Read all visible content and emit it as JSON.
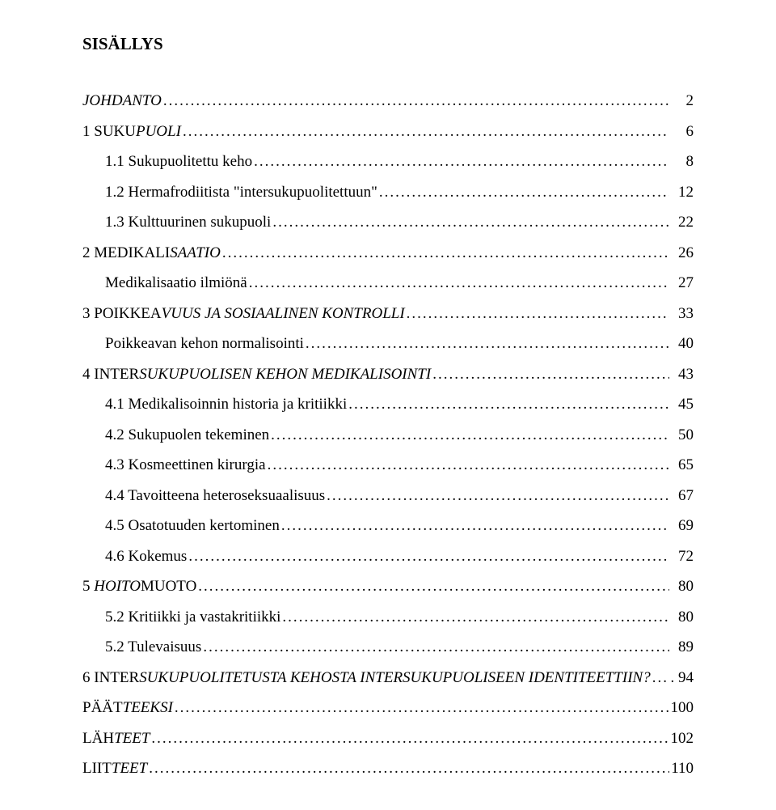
{
  "heading": "SISÄLLYS",
  "toc": [
    {
      "label": "JOHDANTO",
      "italicPart": "JOHDANTO",
      "plainPart": "",
      "page": "2",
      "indent": 0
    },
    {
      "label": "1 SUKUPUOLI",
      "italicPart": "PUOLI",
      "plainPart": "1 SUKU",
      "page": "6",
      "indent": 0
    },
    {
      "label": "1.1 Sukupuolitettu keho",
      "italicPart": "",
      "plainPart": "1.1 Sukupuolitettu keho",
      "page": "8",
      "indent": 1
    },
    {
      "label": "1.2 Hermafrodiitista \"intersukupuolitettuun\"",
      "italicPart": "",
      "plainPart": "1.2 Hermafrodiitista \"intersukupuolitettuun\"",
      "page": "12",
      "indent": 1
    },
    {
      "label": "1.3 Kulttuurinen sukupuoli",
      "italicPart": "",
      "plainPart": "1.3 Kulttuurinen sukupuoli",
      "page": "22",
      "indent": 1
    },
    {
      "label": "2 MEDIKALISAATIO",
      "italicPart": "SAATIO",
      "plainPart": "2 MEDIKALI",
      "page": "26",
      "indent": 0
    },
    {
      "label": "Medikalisaatio ilmiönä",
      "italicPart": "",
      "plainPart": "Medikalisaatio ilmiönä",
      "page": "27",
      "indent": 1
    },
    {
      "label": "3 POIKKEAVUUS JA SOSIAALINEN KONTROLLI",
      "italicPart": "VUUS JA SOSIAALINEN KONTROLLI",
      "plainPart": "3 POIKKEA",
      "page": "33",
      "indent": 0
    },
    {
      "label": "Poikkeavan kehon normalisointi",
      "italicPart": "",
      "plainPart": "Poikkeavan kehon normalisointi",
      "page": "40",
      "indent": 1
    },
    {
      "label": "4 INTERSUKUPUOLISEN KEHON MEDIKALISOINTI",
      "italicPart": "SUKUPUOLISEN KEHON MEDIKALISOINTI",
      "plainPart": "4 INTER",
      "page": "43",
      "indent": 0
    },
    {
      "label": "4.1 Medikalisoinnin historia ja kritiikki",
      "italicPart": "",
      "plainPart": "4.1 Medikalisoinnin historia ja kritiikki",
      "page": "45",
      "indent": 1
    },
    {
      "label": "4.2 Sukupuolen tekeminen",
      "italicPart": "",
      "plainPart": "4.2 Sukupuolen tekeminen",
      "page": "50",
      "indent": 1
    },
    {
      "label": "4.3 Kosmeettinen kirurgia",
      "italicPart": "",
      "plainPart": "4.3 Kosmeettinen kirurgia",
      "page": "65",
      "indent": 1
    },
    {
      "label": "4.4 Tavoitteena heteroseksuaalisuus",
      "italicPart": "",
      "plainPart": "4.4 Tavoitteena heteroseksuaalisuus",
      "page": "67",
      "indent": 1
    },
    {
      "label": "4.5 Osatotuuden kertominen",
      "italicPart": "",
      "plainPart": "4.5 Osatotuuden kertominen",
      "page": "69",
      "indent": 1
    },
    {
      "label": "4.6 Kokemus",
      "italicPart": "",
      "plainPart": "4.6 Kokemus",
      "page": "72",
      "indent": 1
    },
    {
      "label": "5 HOITOMUOTO",
      "italicPart": "HOITO",
      "plainPart": "5 ",
      "plainTail": "MUOTO",
      "page": "80",
      "indent": 0
    },
    {
      "label": "5.2 Kritiikki ja vastakritiikki",
      "italicPart": "",
      "plainPart": "5.2 Kritiikki ja vastakritiikki",
      "page": "80",
      "indent": 1
    },
    {
      "label": "5.2 Tulevaisuus",
      "italicPart": "",
      "plainPart": "5.2 Tulevaisuus",
      "page": "89",
      "indent": 1
    },
    {
      "label": "6 INTERSUKUPUOLITETUSTA KEHOSTA INTERSUKUPUOLISEEN IDENTITEETTIIN?",
      "italicPart": "SUKUPUOLITETUSTA KEHOSTA INTERSUKUPUOLISEEN IDENTITEETTIIN?",
      "plainPart": "6 INTER",
      "page": ". 94",
      "indent": 0
    },
    {
      "label": "PÄÄTTEEKSI",
      "italicPart": "TEEKSI",
      "plainPart": "PÄÄT",
      "page": "100",
      "indent": 0
    },
    {
      "label": "LÄHTEET",
      "italicPart": "TEET",
      "plainPart": "LÄH",
      "page": "102",
      "indent": 0
    },
    {
      "label": "LIITTEET",
      "italicPart": "TEET",
      "plainPart": "LIIT",
      "page": "110",
      "indent": 0
    }
  ]
}
